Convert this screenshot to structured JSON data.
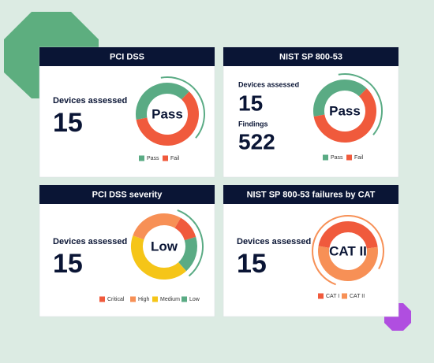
{
  "cards": [
    {
      "title": "PCI DSS",
      "stats": [
        {
          "label": "Devices assessed",
          "value": "15"
        }
      ],
      "chart": {
        "type": "donut",
        "center_label": "Pass",
        "categories": [
          "Pass",
          "Fail"
        ],
        "values": [
          40,
          60
        ],
        "colors": [
          "#5aab84",
          "#f05a3c"
        ]
      }
    },
    {
      "title": "NIST SP 800-53",
      "stats": [
        {
          "label": "Devices assessed",
          "value": "15"
        },
        {
          "label": "Findings",
          "value": "522"
        }
      ],
      "chart": {
        "type": "donut",
        "center_label": "Pass",
        "categories": [
          "Pass",
          "Fail"
        ],
        "values": [
          40,
          60
        ],
        "colors": [
          "#5aab84",
          "#f05a3c"
        ]
      }
    },
    {
      "title": "PCI DSS severity",
      "stats": [
        {
          "label": "Devices assessed",
          "value": "15"
        }
      ],
      "chart": {
        "type": "donut",
        "center_label": "Low",
        "categories": [
          "Critical",
          "High",
          "Medium",
          "Low"
        ],
        "values": [
          12,
          28,
          42,
          18
        ],
        "colors": [
          "#f05a3c",
          "#f79056",
          "#f5c518",
          "#5aab84"
        ]
      }
    },
    {
      "title": "NIST SP 800-53 failures by CAT",
      "stats": [
        {
          "label": "Devices assessed",
          "value": "15"
        }
      ],
      "chart": {
        "type": "donut",
        "center_label": "CAT II",
        "categories": [
          "CAT I",
          "CAT II"
        ],
        "values": [
          45,
          55
        ],
        "colors": [
          "#f05a3c",
          "#f79056"
        ]
      }
    }
  ]
}
